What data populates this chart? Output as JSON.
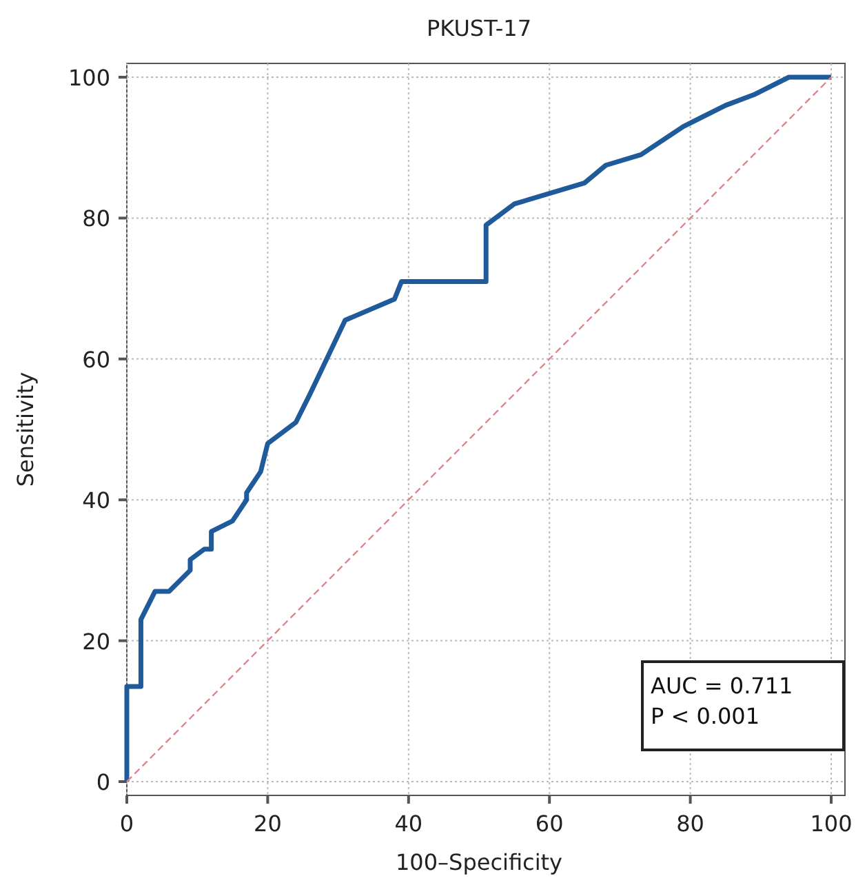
{
  "chart_data": {
    "type": "line",
    "title": "PKUST-17",
    "xlabel": "100–Specificity",
    "ylabel": "Sensitivity",
    "xlim": [
      0,
      100
    ],
    "ylim": [
      0,
      100
    ],
    "xticks": [
      0,
      20,
      40,
      60,
      80,
      100
    ],
    "yticks": [
      0,
      20,
      40,
      60,
      80,
      100
    ],
    "grid": true,
    "series": [
      {
        "color": "#1f5a9a",
        "x": [
          0,
          0,
          2,
          2,
          4,
          6,
          9,
          9,
          11,
          12,
          12,
          15,
          17,
          17,
          19,
          20,
          24,
          26,
          31,
          38,
          39,
          51,
          51,
          55,
          65,
          68,
          73,
          79,
          85,
          89,
          94,
          100
        ],
        "values": [
          0,
          13.5,
          13.5,
          23,
          27,
          27,
          30,
          31.5,
          33,
          33,
          35.5,
          37,
          40,
          41,
          44,
          48,
          51,
          55,
          65.5,
          68.5,
          71,
          71,
          79,
          82,
          85,
          87.5,
          89,
          93,
          96,
          97.5,
          100,
          100
        ]
      },
      {
        "color": "#d9888f",
        "line_style": "dashed",
        "x": [
          0,
          100
        ],
        "values": [
          0,
          100
        ]
      }
    ],
    "annotations": [
      "AUC = 0.711",
      "P < 0.001"
    ]
  }
}
